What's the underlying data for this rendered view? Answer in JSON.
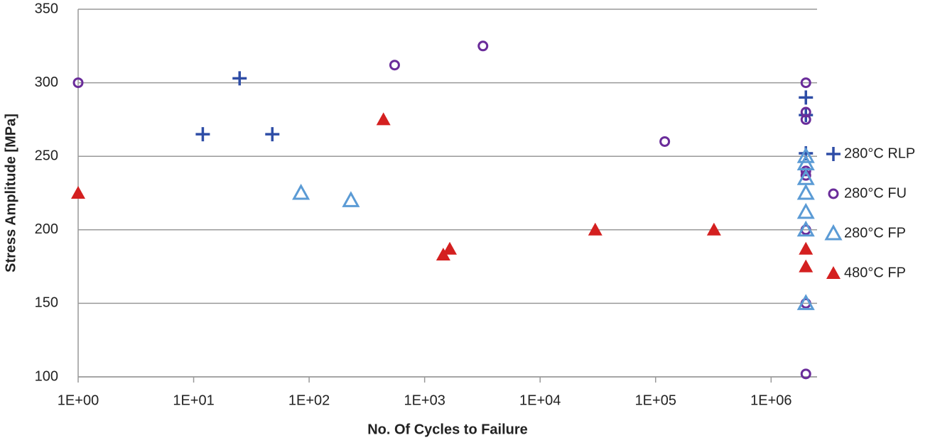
{
  "chart_data": {
    "type": "scatter",
    "x_label": "No. Of Cycles to Failure",
    "y_label": "Stress Amplitude [MPa]",
    "xscale": "log",
    "xlim": [
      1,
      2500000
    ],
    "xticks": [
      {
        "value": 1,
        "label": "1E+00"
      },
      {
        "value": 10,
        "label": "1E+01"
      },
      {
        "value": 100,
        "label": "1E+02"
      },
      {
        "value": 1000,
        "label": "1E+03"
      },
      {
        "value": 10000,
        "label": "1E+04"
      },
      {
        "value": 100000,
        "label": "1E+05"
      },
      {
        "value": 1000000,
        "label": "1E+06"
      }
    ],
    "ylim": [
      100,
      350
    ],
    "yticks": [
      100,
      150,
      200,
      250,
      300,
      350
    ],
    "grid": true,
    "legend": "right",
    "series": [
      {
        "name": "280°C RLP",
        "color": "#2e4da6",
        "marker": "plus",
        "x": [
          12,
          25,
          48,
          2000000,
          2000000,
          2000000
        ],
        "values": [
          265,
          303,
          265,
          290,
          278,
          252
        ]
      },
      {
        "name": "280°C FU",
        "color": "#6a2c9a",
        "marker": "circle",
        "x": [
          1,
          550,
          3200,
          120000,
          2000000,
          2000000,
          2000000,
          2000000,
          2000000,
          2000000,
          2000000,
          2000000
        ],
        "values": [
          300,
          312,
          325,
          260,
          300,
          280,
          275,
          240,
          237,
          200,
          150,
          102
        ]
      },
      {
        "name": "280°C FP",
        "color": "#5b9bd5",
        "marker": "triangle-open",
        "x": [
          85,
          230,
          2000000,
          2000000,
          2000000,
          2000000,
          2000000,
          2000000,
          2000000
        ],
        "values": [
          225,
          220,
          250,
          245,
          235,
          225,
          212,
          200,
          150
        ]
      },
      {
        "name": "480°C FP",
        "color": "#d42020",
        "marker": "triangle",
        "x": [
          1,
          440,
          1450,
          1650,
          30000,
          320000,
          2000000,
          2000000
        ],
        "values": [
          225,
          275,
          183,
          187,
          200,
          200,
          187,
          175
        ]
      }
    ]
  }
}
